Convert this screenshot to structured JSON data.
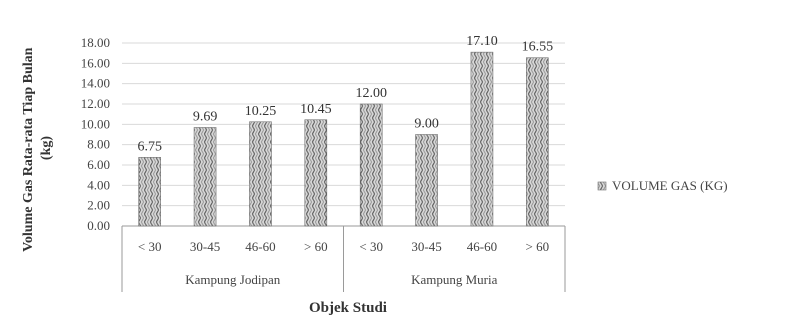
{
  "chart_data": {
    "type": "bar",
    "title": "",
    "ylabel": "Volume Gas Rata-rata Tiap Bulan (kg)",
    "xlabel": "Objek Studi",
    "ylim": [
      0,
      18
    ],
    "ytick_step": 2,
    "ytick_labels": [
      "0.00",
      "2.00",
      "4.00",
      "6.00",
      "8.00",
      "10.00",
      "12.00",
      "14.00",
      "16.00",
      "18.00"
    ],
    "groups": [
      {
        "name": "Kampung Jodipan",
        "categories": [
          "< 30",
          "30-45",
          "46-60",
          "> 60"
        ]
      },
      {
        "name": "Kampung Muria",
        "categories": [
          "< 30",
          "30-45",
          "46-60",
          "> 60"
        ]
      }
    ],
    "series": [
      {
        "name": "VOLUME GAS (KG)",
        "values": [
          6.75,
          9.69,
          10.25,
          10.45,
          12.0,
          9.0,
          17.1,
          16.55
        ],
        "labels": [
          "6.75",
          "9.69",
          "10.25",
          "10.45",
          "12.00",
          "9.00",
          "17.10",
          "16.55"
        ]
      }
    ],
    "grid": true,
    "legend": "right"
  },
  "colors": {
    "bar_fill": "#bdbdbd",
    "bar_stroke": "#6e6e6e",
    "grid": "#d9d9d9",
    "axis": "#9a9a9a"
  }
}
